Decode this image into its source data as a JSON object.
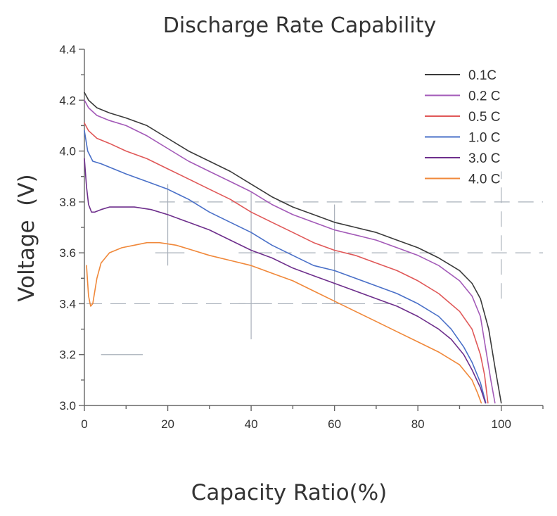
{
  "chart_data": {
    "type": "line",
    "title": "Discharge Rate Capability",
    "xlabel": "Capacity Ratio(%)",
    "ylabel": "Voltage  (V)",
    "xlim": [
      0,
      110
    ],
    "ylim": [
      3.0,
      4.4
    ],
    "xticks": [
      0,
      20,
      40,
      60,
      80,
      100
    ],
    "yticks": [
      3.0,
      3.2,
      3.4,
      3.6,
      3.8,
      4.0,
      4.2,
      4.4
    ],
    "xtick_labels": [
      "0",
      "20",
      "40",
      "60",
      "80",
      "100"
    ],
    "ytick_labels": [
      "3.0",
      "3.2",
      "3.4",
      "3.6",
      "3.8",
      "4.0",
      "4.2",
      "4.4"
    ],
    "legend_position": "top-right",
    "grid": "partial-dashed",
    "series": [
      {
        "name": "0.1C",
        "color": "#3a3a3a",
        "points": [
          [
            0,
            4.23
          ],
          [
            1,
            4.2
          ],
          [
            3,
            4.17
          ],
          [
            6,
            4.15
          ],
          [
            10,
            4.13
          ],
          [
            15,
            4.1
          ],
          [
            20,
            4.05
          ],
          [
            25,
            4.0
          ],
          [
            30,
            3.96
          ],
          [
            35,
            3.92
          ],
          [
            40,
            3.87
          ],
          [
            45,
            3.82
          ],
          [
            50,
            3.78
          ],
          [
            55,
            3.75
          ],
          [
            60,
            3.72
          ],
          [
            65,
            3.7
          ],
          [
            70,
            3.68
          ],
          [
            75,
            3.65
          ],
          [
            80,
            3.62
          ],
          [
            85,
            3.58
          ],
          [
            90,
            3.53
          ],
          [
            93,
            3.48
          ],
          [
            95,
            3.42
          ],
          [
            97,
            3.3
          ],
          [
            98.5,
            3.15
          ],
          [
            100,
            3.01
          ]
        ]
      },
      {
        "name": "0.2 C",
        "color": "#a35ab8",
        "points": [
          [
            0,
            4.2
          ],
          [
            1,
            4.17
          ],
          [
            3,
            4.14
          ],
          [
            6,
            4.12
          ],
          [
            10,
            4.1
          ],
          [
            15,
            4.06
          ],
          [
            20,
            4.01
          ],
          [
            25,
            3.96
          ],
          [
            30,
            3.92
          ],
          [
            35,
            3.88
          ],
          [
            40,
            3.84
          ],
          [
            45,
            3.79
          ],
          [
            50,
            3.75
          ],
          [
            55,
            3.72
          ],
          [
            60,
            3.69
          ],
          [
            65,
            3.67
          ],
          [
            70,
            3.65
          ],
          [
            75,
            3.62
          ],
          [
            80,
            3.59
          ],
          [
            85,
            3.55
          ],
          [
            90,
            3.49
          ],
          [
            93,
            3.43
          ],
          [
            95,
            3.35
          ],
          [
            96.5,
            3.2
          ],
          [
            97.5,
            3.1
          ],
          [
            98.5,
            3.01
          ]
        ]
      },
      {
        "name": "0.5 C",
        "color": "#e05858",
        "points": [
          [
            0,
            4.11
          ],
          [
            1,
            4.08
          ],
          [
            3,
            4.05
          ],
          [
            6,
            4.03
          ],
          [
            10,
            4.0
          ],
          [
            15,
            3.97
          ],
          [
            20,
            3.93
          ],
          [
            25,
            3.89
          ],
          [
            30,
            3.85
          ],
          [
            35,
            3.81
          ],
          [
            40,
            3.76
          ],
          [
            45,
            3.72
          ],
          [
            50,
            3.68
          ],
          [
            55,
            3.64
          ],
          [
            60,
            3.61
          ],
          [
            65,
            3.59
          ],
          [
            70,
            3.56
          ],
          [
            75,
            3.53
          ],
          [
            80,
            3.49
          ],
          [
            85,
            3.44
          ],
          [
            90,
            3.37
          ],
          [
            93,
            3.3
          ],
          [
            95,
            3.2
          ],
          [
            96,
            3.12
          ],
          [
            96.8,
            3.01
          ]
        ]
      },
      {
        "name": "1.0 C",
        "color": "#4a70c8",
        "points": [
          [
            0,
            4.08
          ],
          [
            0.8,
            4.0
          ],
          [
            2,
            3.96
          ],
          [
            4,
            3.95
          ],
          [
            7,
            3.93
          ],
          [
            10,
            3.91
          ],
          [
            15,
            3.88
          ],
          [
            20,
            3.85
          ],
          [
            25,
            3.81
          ],
          [
            30,
            3.76
          ],
          [
            35,
            3.72
          ],
          [
            40,
            3.68
          ],
          [
            45,
            3.63
          ],
          [
            50,
            3.59
          ],
          [
            55,
            3.55
          ],
          [
            60,
            3.53
          ],
          [
            65,
            3.5
          ],
          [
            70,
            3.47
          ],
          [
            75,
            3.44
          ],
          [
            80,
            3.4
          ],
          [
            85,
            3.35
          ],
          [
            88,
            3.3
          ],
          [
            91,
            3.23
          ],
          [
            93,
            3.17
          ],
          [
            95,
            3.09
          ],
          [
            96.3,
            3.01
          ]
        ]
      },
      {
        "name": "3.0 C",
        "color": "#6e2f8c",
        "points": [
          [
            0,
            3.97
          ],
          [
            0.5,
            3.86
          ],
          [
            1,
            3.79
          ],
          [
            1.7,
            3.76
          ],
          [
            2.5,
            3.76
          ],
          [
            4,
            3.77
          ],
          [
            6,
            3.78
          ],
          [
            9,
            3.78
          ],
          [
            12,
            3.78
          ],
          [
            16,
            3.77
          ],
          [
            20,
            3.75
          ],
          [
            25,
            3.72
          ],
          [
            30,
            3.69
          ],
          [
            35,
            3.65
          ],
          [
            40,
            3.61
          ],
          [
            45,
            3.58
          ],
          [
            50,
            3.54
          ],
          [
            55,
            3.51
          ],
          [
            60,
            3.48
          ],
          [
            65,
            3.45
          ],
          [
            70,
            3.42
          ],
          [
            75,
            3.39
          ],
          [
            80,
            3.35
          ],
          [
            85,
            3.3
          ],
          [
            88,
            3.26
          ],
          [
            91,
            3.2
          ],
          [
            93,
            3.14
          ],
          [
            95,
            3.07
          ],
          [
            96.2,
            3.01
          ]
        ]
      },
      {
        "name": "4.0 C",
        "color": "#f0883a",
        "points": [
          [
            0.5,
            3.55
          ],
          [
            1,
            3.43
          ],
          [
            1.5,
            3.39
          ],
          [
            2,
            3.4
          ],
          [
            3,
            3.5
          ],
          [
            4,
            3.56
          ],
          [
            6,
            3.6
          ],
          [
            9,
            3.62
          ],
          [
            12,
            3.63
          ],
          [
            15,
            3.64
          ],
          [
            18,
            3.64
          ],
          [
            22,
            3.63
          ],
          [
            26,
            3.61
          ],
          [
            30,
            3.59
          ],
          [
            35,
            3.57
          ],
          [
            40,
            3.55
          ],
          [
            45,
            3.52
          ],
          [
            50,
            3.49
          ],
          [
            55,
            3.45
          ],
          [
            60,
            3.41
          ],
          [
            65,
            3.37
          ],
          [
            70,
            3.33
          ],
          [
            75,
            3.29
          ],
          [
            80,
            3.25
          ],
          [
            85,
            3.21
          ],
          [
            90,
            3.16
          ],
          [
            93,
            3.1
          ],
          [
            94.3,
            3.05
          ],
          [
            95.2,
            3.01
          ]
        ]
      }
    ]
  }
}
